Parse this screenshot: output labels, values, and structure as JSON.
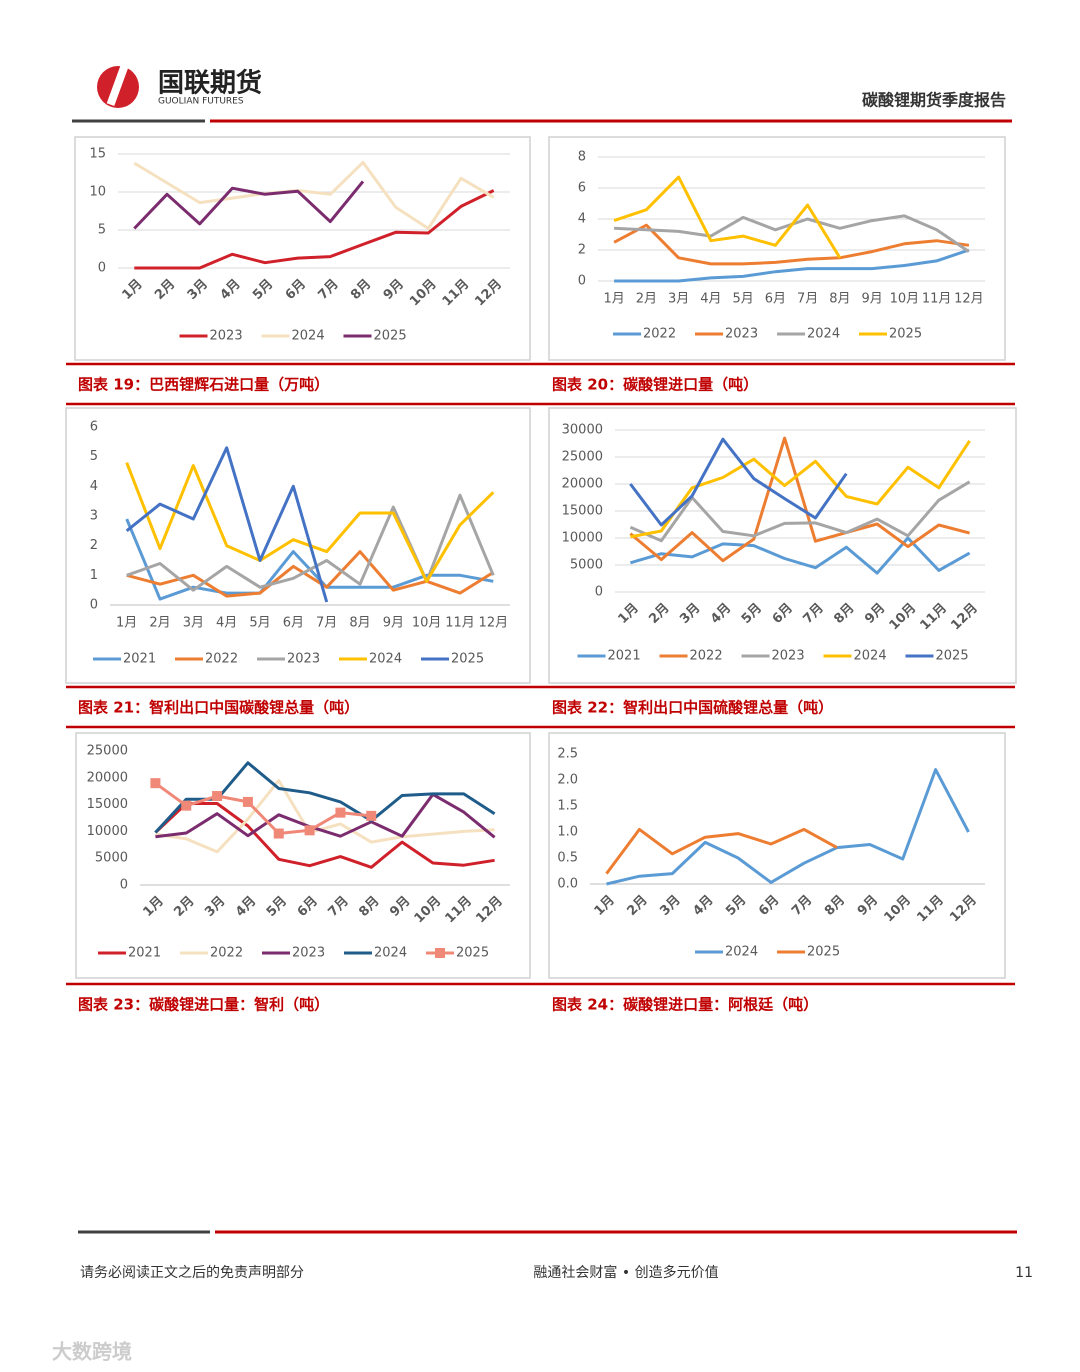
{
  "header": {
    "company": "国联期货",
    "company_en": "GUOLIAN FUTURES",
    "report": "碳酸锂期货季度报告"
  },
  "captions": [
    "图表 19：巴西锂辉石进口量（万吨）",
    "图表 20：碳酸锂进口量（吨）",
    "图表 21：智利出口中国碳酸锂总量（吨）",
    "图表 22：智利出口中国硫酸锂总量（吨）",
    "图表 23：碳酸锂进口量：智利（吨）",
    "图表 24：碳酸锂进口量：阿根廷（吨）"
  ],
  "footer": {
    "disclaimer": "请务必阅读正文之后的免责声明部分",
    "slogan": "融通社会财富 • 创造多元价值",
    "page": "11"
  },
  "watermark": "大数跨境",
  "chart_data": [
    {
      "type": "line",
      "categories": [
        "1月",
        "2月",
        "3月",
        "4月",
        "5月",
        "6月",
        "7月",
        "8月",
        "9月",
        "10月",
        "11月",
        "12月"
      ],
      "ylim": [
        0,
        15
      ],
      "yticks": [
        0,
        5,
        10,
        15
      ],
      "grid": true,
      "series": [
        {
          "name": "2023",
          "color": "#d0202a",
          "values": [
            0,
            0,
            0,
            1.8,
            0.7,
            1.3,
            1.5,
            3.1,
            4.7,
            4.6,
            8.1,
            10.2
          ]
        },
        {
          "name": "2024",
          "color": "#f5e1c0",
          "values": [
            13.8,
            11.2,
            8.6,
            9.2,
            9.8,
            10.2,
            9.7,
            13.9,
            8,
            5.2,
            11.8,
            9.3
          ]
        },
        {
          "name": "2025",
          "color": "#7b2c6e",
          "values": [
            5.2,
            9.7,
            5.8,
            10.5,
            9.7,
            10.1,
            6.1,
            11.4,
            null,
            null,
            null,
            null
          ]
        }
      ]
    },
    {
      "type": "line",
      "categories": [
        "1月",
        "2月",
        "3月",
        "4月",
        "5月",
        "6月",
        "7月",
        "8月",
        "9月",
        "10月",
        "11月",
        "12月"
      ],
      "ylim": [
        0,
        8
      ],
      "yticks": [
        0,
        2,
        4,
        6,
        8
      ],
      "grid": true,
      "series": [
        {
          "name": "2022",
          "color": "#5b9bd5",
          "values": [
            0,
            0,
            0,
            0.2,
            0.3,
            0.6,
            0.8,
            0.8,
            0.8,
            1.0,
            1.3,
            2.0
          ]
        },
        {
          "name": "2023",
          "color": "#ed7d31",
          "values": [
            2.5,
            3.6,
            1.5,
            1.1,
            1.1,
            1.2,
            1.4,
            1.5,
            1.9,
            2.4,
            2.6,
            2.3
          ]
        },
        {
          "name": "2024",
          "color": "#a5a5a5",
          "values": [
            3.4,
            3.3,
            3.2,
            2.9,
            4.1,
            3.3,
            4.0,
            3.4,
            3.9,
            4.2,
            3.3,
            1.9
          ]
        },
        {
          "name": "2025",
          "color": "#ffc000",
          "values": [
            3.9,
            4.6,
            6.7,
            2.6,
            2.9,
            2.3,
            4.9,
            1.5,
            null,
            null,
            null,
            null
          ]
        }
      ]
    },
    {
      "type": "line",
      "categories": [
        "1月",
        "2月",
        "3月",
        "4月",
        "5月",
        "6月",
        "7月",
        "8月",
        "9月",
        "10月",
        "11月",
        "12月"
      ],
      "ylim": [
        0,
        6
      ],
      "yticks": [
        0,
        1,
        2,
        3,
        4,
        5,
        6
      ],
      "grid": false,
      "series": [
        {
          "name": "2021",
          "color": "#5b9bd5",
          "values": [
            2.9,
            0.2,
            0.6,
            0.4,
            0.4,
            1.8,
            0.6,
            0.6,
            0.6,
            1.0,
            1.0,
            0.8
          ]
        },
        {
          "name": "2022",
          "color": "#ed7d31",
          "values": [
            1.0,
            0.7,
            1.0,
            0.3,
            0.4,
            1.3,
            0.6,
            1.8,
            0.5,
            0.8,
            0.4,
            1.1
          ]
        },
        {
          "name": "2023",
          "color": "#a5a5a5",
          "values": [
            1.0,
            1.4,
            0.5,
            1.3,
            0.6,
            0.9,
            1.5,
            0.7,
            3.3,
            0.8,
            3.7,
            1.0
          ]
        },
        {
          "name": "2024",
          "color": "#ffc000",
          "values": [
            4.8,
            1.9,
            4.7,
            2.0,
            1.5,
            2.2,
            1.8,
            3.1,
            3.1,
            0.8,
            2.7,
            3.8
          ]
        },
        {
          "name": "2025",
          "color": "#4472c4",
          "values": [
            2.5,
            3.4,
            2.9,
            5.3,
            1.5,
            4.0,
            0.1,
            null,
            null,
            null,
            null,
            null
          ]
        }
      ]
    },
    {
      "type": "line",
      "categories": [
        "1月",
        "2月",
        "3月",
        "4月",
        "5月",
        "6月",
        "7月",
        "8月",
        "9月",
        "10月",
        "11月",
        "12月"
      ],
      "ylim": [
        0,
        30000
      ],
      "yticks": [
        0,
        5000,
        10000,
        15000,
        20000,
        25000,
        30000
      ],
      "grid": true,
      "series": [
        {
          "name": "2021",
          "color": "#5b9bd5",
          "values": [
            5400,
            7100,
            6500,
            8900,
            8600,
            6200,
            4500,
            8300,
            3500,
            10000,
            4000,
            7200
          ]
        },
        {
          "name": "2022",
          "color": "#ed7d31",
          "values": [
            10800,
            6000,
            11000,
            5800,
            9800,
            28500,
            9400,
            11000,
            12600,
            8400,
            12400,
            10900
          ]
        },
        {
          "name": "2023",
          "color": "#a5a5a5",
          "values": [
            12000,
            9500,
            17500,
            11200,
            10400,
            12700,
            12800,
            11000,
            13500,
            10400,
            17000,
            20400
          ]
        },
        {
          "name": "2024",
          "color": "#ffc000",
          "values": [
            10200,
            11300,
            19300,
            21200,
            24600,
            19700,
            24200,
            17700,
            16300,
            23100,
            19300,
            28000
          ]
        },
        {
          "name": "2025",
          "color": "#4472c4",
          "values": [
            20000,
            12400,
            17800,
            28300,
            21000,
            17300,
            13700,
            21900,
            null,
            null,
            null,
            null
          ]
        }
      ]
    },
    {
      "type": "line",
      "categories": [
        "1月",
        "2月",
        "3月",
        "4月",
        "5月",
        "6月",
        "7月",
        "8月",
        "9月",
        "10月",
        "11月",
        "12月"
      ],
      "ylim": [
        0,
        25000
      ],
      "yticks": [
        0,
        5000,
        10000,
        15000,
        20000,
        25000
      ],
      "grid": false,
      "series": [
        {
          "name": "2021",
          "color": "#d0202a",
          "values": [
            9800,
            15200,
            15200,
            11000,
            4800,
            3600,
            5300,
            3300,
            8000,
            4100,
            3700,
            4600
          ]
        },
        {
          "name": "2022",
          "color": "#f5e1c0",
          "values": [
            9500,
            8600,
            6200,
            12300,
            19500,
            9800,
            11400,
            8000,
            9000,
            9500,
            10000,
            10300
          ]
        },
        {
          "name": "2023",
          "color": "#7b2c6e",
          "values": [
            9000,
            9700,
            13300,
            9200,
            13100,
            10900,
            9100,
            11800,
            9100,
            16900,
            13600,
            8900
          ]
        },
        {
          "name": "2024",
          "color": "#1f5c8a",
          "values": [
            9800,
            16000,
            16000,
            22800,
            18000,
            17200,
            15500,
            12000,
            16700,
            17000,
            17000,
            13300
          ]
        },
        {
          "name": "2025",
          "color": "#f08878",
          "marker": "square",
          "values": [
            19000,
            14800,
            16600,
            15500,
            9600,
            10200,
            13500,
            12900,
            null,
            null,
            null,
            null
          ]
        }
      ]
    },
    {
      "type": "line",
      "categories": [
        "1月",
        "2月",
        "3月",
        "4月",
        "5月",
        "6月",
        "7月",
        "8月",
        "9月",
        "10月",
        "11月",
        "12月"
      ],
      "ylim": [
        0,
        2.5
      ],
      "yticks": [
        {
          "value": 0,
          "label": "0.0"
        },
        0.5,
        {
          "value": 1,
          "label": "1.0"
        },
        1.5,
        {
          "value": 2,
          "label": "2.0"
        },
        2.5
      ],
      "grid": false,
      "series": [
        {
          "name": "2024",
          "color": "#5b9bd5",
          "values": [
            0,
            0.15,
            0.2,
            0.8,
            0.5,
            0.03,
            0.4,
            0.7,
            0.76,
            0.48,
            2.2,
            1.0
          ]
        },
        {
          "name": "2025",
          "color": "#ed7d31",
          "values": [
            0.2,
            1.05,
            0.58,
            0.9,
            0.97,
            0.77,
            1.05,
            0.7,
            null,
            null,
            null,
            null
          ]
        }
      ]
    }
  ]
}
